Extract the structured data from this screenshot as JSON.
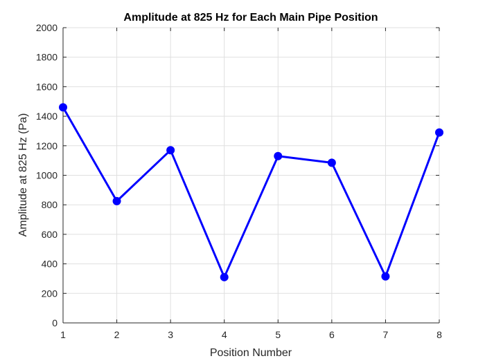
{
  "chart_data": {
    "type": "line",
    "title": "Amplitude at 825 Hz for Each Main Pipe Position",
    "xlabel": "Position Number",
    "ylabel": "Amplitude at 825 Hz (Pa)",
    "xlim": [
      1,
      8
    ],
    "ylim": [
      0,
      2000
    ],
    "xticks": [
      1,
      2,
      3,
      4,
      5,
      6,
      7,
      8
    ],
    "yticks": [
      0,
      200,
      400,
      600,
      800,
      1000,
      1200,
      1400,
      1600,
      1800,
      2000
    ],
    "grid": true,
    "series": [
      {
        "name": "Amplitude",
        "color": "#0000ff",
        "marker": "circle",
        "x": [
          1,
          2,
          3,
          4,
          5,
          6,
          7,
          8
        ],
        "values": [
          1460,
          825,
          1170,
          310,
          1130,
          1085,
          315,
          1290
        ]
      }
    ]
  }
}
